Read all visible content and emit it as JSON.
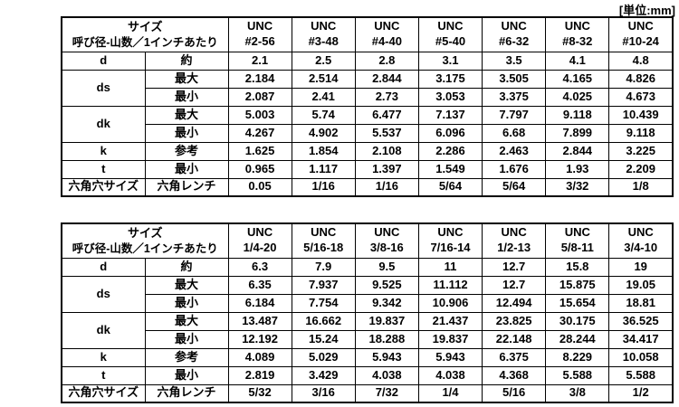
{
  "unit_label": "[単位:mm]",
  "tables": [
    {
      "title": "UNC number-size socket cap screw dimensions",
      "header": {
        "size_title": "サイズ",
        "size_subtitle": "呼び径-山数／1インチあたり",
        "columns": [
          {
            "line1": "UNC",
            "line2": "#2-56"
          },
          {
            "line1": "UNC",
            "line2": "#3-48"
          },
          {
            "line1": "UNC",
            "line2": "#4-40"
          },
          {
            "line1": "UNC",
            "line2": "#5-40"
          },
          {
            "line1": "UNC",
            "line2": "#6-32"
          },
          {
            "line1": "UNC",
            "line2": "#8-32"
          },
          {
            "line1": "UNC",
            "line2": "#10-24"
          }
        ]
      },
      "rows": [
        {
          "label": "d",
          "rowspan": 1,
          "sub": "約",
          "values": [
            "2.1",
            "2.5",
            "2.8",
            "3.1",
            "3.5",
            "4.1",
            "4.8"
          ]
        },
        {
          "label": "ds",
          "rowspan": 2,
          "sub": "最大",
          "values": [
            "2.184",
            "2.514",
            "2.844",
            "3.175",
            "3.505",
            "4.165",
            "4.826"
          ]
        },
        {
          "label": null,
          "rowspan": 0,
          "sub": "最小",
          "values": [
            "2.087",
            "2.41",
            "2.73",
            "3.053",
            "3.375",
            "4.025",
            "4.673"
          ]
        },
        {
          "label": "dk",
          "rowspan": 2,
          "sub": "最大",
          "values": [
            "5.003",
            "5.74",
            "6.477",
            "7.137",
            "7.797",
            "9.118",
            "10.439"
          ]
        },
        {
          "label": null,
          "rowspan": 0,
          "sub": "最小",
          "values": [
            "4.267",
            "4.902",
            "5.537",
            "6.096",
            "6.68",
            "7.899",
            "9.118"
          ]
        },
        {
          "label": "k",
          "rowspan": 1,
          "sub": "参考",
          "values": [
            "1.625",
            "1.854",
            "2.108",
            "2.286",
            "2.463",
            "2.844",
            "3.225"
          ]
        },
        {
          "label": "t",
          "rowspan": 1,
          "sub": "最小",
          "values": [
            "0.965",
            "1.117",
            "1.397",
            "1.549",
            "1.676",
            "1.93",
            "2.209"
          ]
        },
        {
          "label": "六角穴サイズ",
          "rowspan": 1,
          "sub": "六角レンチ",
          "values": [
            "0.05",
            "1/16",
            "1/16",
            "5/64",
            "5/64",
            "3/32",
            "1/8"
          ]
        }
      ]
    },
    {
      "title": "UNC fractional-size socket cap screw dimensions",
      "header": {
        "size_title": "サイズ",
        "size_subtitle": "呼び径-山数／1インチあたり",
        "columns": [
          {
            "line1": "UNC",
            "line2": "1/4-20"
          },
          {
            "line1": "UNC",
            "line2": "5/16-18"
          },
          {
            "line1": "UNC",
            "line2": "3/8-16"
          },
          {
            "line1": "UNC",
            "line2": "7/16-14"
          },
          {
            "line1": "UNC",
            "line2": "1/2-13"
          },
          {
            "line1": "UNC",
            "line2": "5/8-11"
          },
          {
            "line1": "UNC",
            "line2": "3/4-10"
          }
        ]
      },
      "rows": [
        {
          "label": "d",
          "rowspan": 1,
          "sub": "約",
          "values": [
            "6.3",
            "7.9",
            "9.5",
            "11",
            "12.7",
            "15.8",
            "19"
          ]
        },
        {
          "label": "ds",
          "rowspan": 2,
          "sub": "最大",
          "values": [
            "6.35",
            "7.937",
            "9.525",
            "11.112",
            "12.7",
            "15.875",
            "19.05"
          ]
        },
        {
          "label": null,
          "rowspan": 0,
          "sub": "最小",
          "values": [
            "6.184",
            "7.754",
            "9.342",
            "10.906",
            "12.494",
            "15.654",
            "18.81"
          ]
        },
        {
          "label": "dk",
          "rowspan": 2,
          "sub": "最大",
          "values": [
            "13.487",
            "16.662",
            "19.837",
            "21.437",
            "23.825",
            "30.175",
            "36.525"
          ]
        },
        {
          "label": null,
          "rowspan": 0,
          "sub": "最小",
          "values": [
            "12.192",
            "15.24",
            "18.288",
            "19.837",
            "22.148",
            "28.244",
            "34.417"
          ]
        },
        {
          "label": "k",
          "rowspan": 1,
          "sub": "参考",
          "values": [
            "4.089",
            "5.029",
            "5.943",
            "5.943",
            "6.375",
            "8.229",
            "10.058"
          ]
        },
        {
          "label": "t",
          "rowspan": 1,
          "sub": "最小",
          "values": [
            "2.819",
            "3.429",
            "4.038",
            "4.038",
            "4.368",
            "5.588",
            "5.588"
          ]
        },
        {
          "label": "六角穴サイズ",
          "rowspan": 1,
          "sub": "六角レンチ",
          "values": [
            "5/32",
            "3/16",
            "7/32",
            "1/4",
            "5/16",
            "3/8",
            "1/2"
          ]
        }
      ]
    }
  ]
}
